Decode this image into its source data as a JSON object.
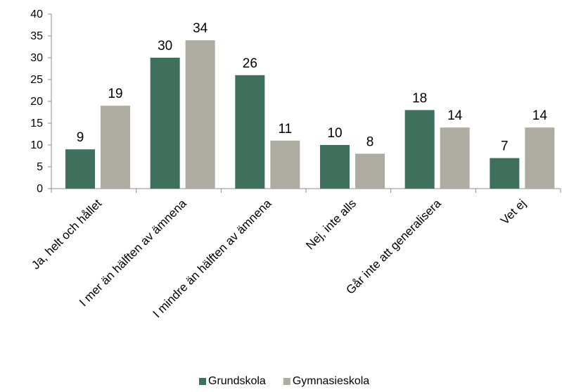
{
  "chart_data": {
    "type": "bar",
    "categories": [
      "Ja, helt och hållet",
      "I mer än hälften av ämnena",
      "I mindre än hälften av ämnena",
      "Nej, inte alls",
      "Går inte att generalisera",
      "Vet ej"
    ],
    "series": [
      {
        "name": "Grundskola",
        "values": [
          9,
          30,
          26,
          10,
          18,
          7
        ],
        "color": "#3f6f5d"
      },
      {
        "name": "Gymnasieskola",
        "values": [
          19,
          34,
          11,
          8,
          14,
          14
        ],
        "color": "#aeaba0"
      }
    ],
    "ylim": [
      0,
      40
    ],
    "yticks": [
      0,
      5,
      10,
      15,
      20,
      25,
      30,
      35,
      40
    ],
    "grid": false,
    "legend_position": "bottom",
    "data_labels": true
  }
}
